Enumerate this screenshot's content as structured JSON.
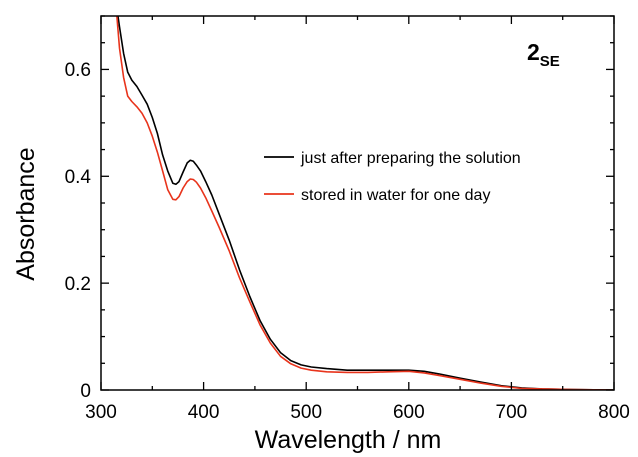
{
  "chart_data": {
    "type": "line",
    "xlabel": "Wavelength / nm",
    "ylabel": "Absorbance",
    "xlim": [
      300,
      800
    ],
    "ylim": [
      0,
      0.7
    ],
    "xticks": [
      300,
      400,
      500,
      600,
      700,
      800
    ],
    "xtick_labels": [
      "300",
      "400",
      "500",
      "600",
      "700",
      "800"
    ],
    "yticks": [
      0,
      0.2,
      0.4,
      0.6
    ],
    "ytick_labels": [
      "0",
      "0.2",
      "0.4",
      "0.6"
    ],
    "grid": false,
    "legend_position": "center-right",
    "annotation": {
      "main": "2",
      "subscript": "SE",
      "position": "top-right"
    },
    "series": [
      {
        "name": "just after preparing the solution",
        "color": "#000000",
        "points": [
          [
            315,
            0.72
          ],
          [
            318,
            0.68
          ],
          [
            322,
            0.63
          ],
          [
            326,
            0.595
          ],
          [
            330,
            0.58
          ],
          [
            335,
            0.568
          ],
          [
            340,
            0.552
          ],
          [
            345,
            0.535
          ],
          [
            350,
            0.51
          ],
          [
            355,
            0.48
          ],
          [
            360,
            0.44
          ],
          [
            365,
            0.41
          ],
          [
            370,
            0.387
          ],
          [
            373,
            0.385
          ],
          [
            376,
            0.39
          ],
          [
            380,
            0.408
          ],
          [
            384,
            0.425
          ],
          [
            387,
            0.43
          ],
          [
            390,
            0.428
          ],
          [
            393,
            0.421
          ],
          [
            397,
            0.41
          ],
          [
            402,
            0.39
          ],
          [
            408,
            0.365
          ],
          [
            415,
            0.33
          ],
          [
            425,
            0.28
          ],
          [
            435,
            0.225
          ],
          [
            445,
            0.175
          ],
          [
            455,
            0.13
          ],
          [
            465,
            0.095
          ],
          [
            475,
            0.07
          ],
          [
            485,
            0.055
          ],
          [
            495,
            0.047
          ],
          [
            505,
            0.043
          ],
          [
            520,
            0.04
          ],
          [
            540,
            0.037
          ],
          [
            560,
            0.037
          ],
          [
            580,
            0.037
          ],
          [
            600,
            0.037
          ],
          [
            615,
            0.035
          ],
          [
            630,
            0.03
          ],
          [
            650,
            0.022
          ],
          [
            670,
            0.015
          ],
          [
            690,
            0.008
          ],
          [
            710,
            0.004
          ],
          [
            730,
            0.002
          ],
          [
            760,
            0.001
          ],
          [
            800,
            0.0
          ]
        ]
      },
      {
        "name": "stored in water for one day",
        "color": "#e8341c",
        "points": [
          [
            315,
            0.71
          ],
          [
            318,
            0.64
          ],
          [
            322,
            0.585
          ],
          [
            326,
            0.55
          ],
          [
            330,
            0.54
          ],
          [
            335,
            0.53
          ],
          [
            340,
            0.518
          ],
          [
            345,
            0.5
          ],
          [
            350,
            0.475
          ],
          [
            355,
            0.445
          ],
          [
            360,
            0.41
          ],
          [
            365,
            0.375
          ],
          [
            370,
            0.357
          ],
          [
            373,
            0.356
          ],
          [
            376,
            0.362
          ],
          [
            380,
            0.378
          ],
          [
            384,
            0.39
          ],
          [
            387,
            0.395
          ],
          [
            390,
            0.394
          ],
          [
            393,
            0.389
          ],
          [
            397,
            0.378
          ],
          [
            402,
            0.36
          ],
          [
            408,
            0.335
          ],
          [
            415,
            0.305
          ],
          [
            425,
            0.26
          ],
          [
            435,
            0.21
          ],
          [
            445,
            0.165
          ],
          [
            455,
            0.122
          ],
          [
            465,
            0.088
          ],
          [
            475,
            0.063
          ],
          [
            485,
            0.049
          ],
          [
            495,
            0.041
          ],
          [
            505,
            0.037
          ],
          [
            520,
            0.034
          ],
          [
            540,
            0.033
          ],
          [
            560,
            0.033
          ],
          [
            580,
            0.034
          ],
          [
            600,
            0.035
          ],
          [
            615,
            0.032
          ],
          [
            630,
            0.027
          ],
          [
            650,
            0.02
          ],
          [
            670,
            0.013
          ],
          [
            690,
            0.007
          ],
          [
            710,
            0.003
          ],
          [
            730,
            0.002
          ],
          [
            760,
            0.001
          ],
          [
            800,
            0.0
          ]
        ]
      }
    ]
  }
}
